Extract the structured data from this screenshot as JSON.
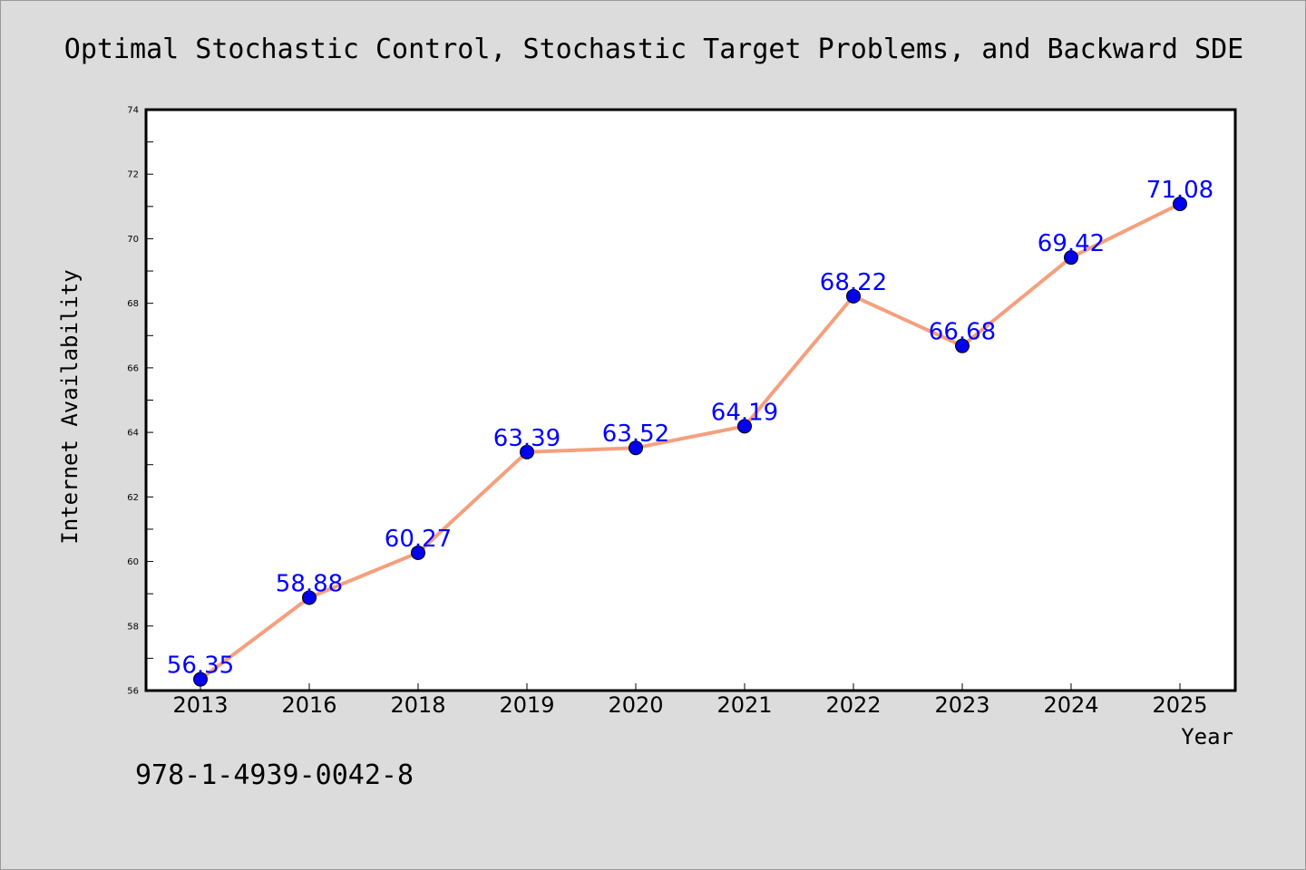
{
  "chart_data": {
    "type": "line",
    "title": "Optimal Stochastic Control, Stochastic Target Problems, and Backward SDE",
    "xlabel": "Year",
    "ylabel": "Internet Availability",
    "categories": [
      "2013",
      "2016",
      "2018",
      "2019",
      "2020",
      "2021",
      "2022",
      "2023",
      "2024",
      "2025"
    ],
    "series": [
      {
        "values": [
          56.35,
          58.88,
          60.27,
          63.39,
          63.52,
          64.19,
          68.22,
          66.68,
          69.42,
          71.08
        ],
        "data_labels": [
          "56.35",
          "58.88",
          "60.27",
          "63.39",
          "63.52",
          "64.19",
          "68.22",
          "66.68",
          "69.42",
          "71.08"
        ]
      }
    ],
    "ylim": [
      56,
      74
    ],
    "y_ticks": [
      "56",
      "58",
      "60",
      "62",
      "64",
      "66",
      "68",
      "70",
      "72",
      "74"
    ],
    "grid": false,
    "legend": "none",
    "line_color": "#f4a07e",
    "marker_color": "#0000ee",
    "label_color": "#0000ff",
    "plot_background": "#ffffff",
    "figure_background": "#dcdcdc"
  },
  "footer": {
    "isbn": "978-1-4939-0042-8"
  }
}
